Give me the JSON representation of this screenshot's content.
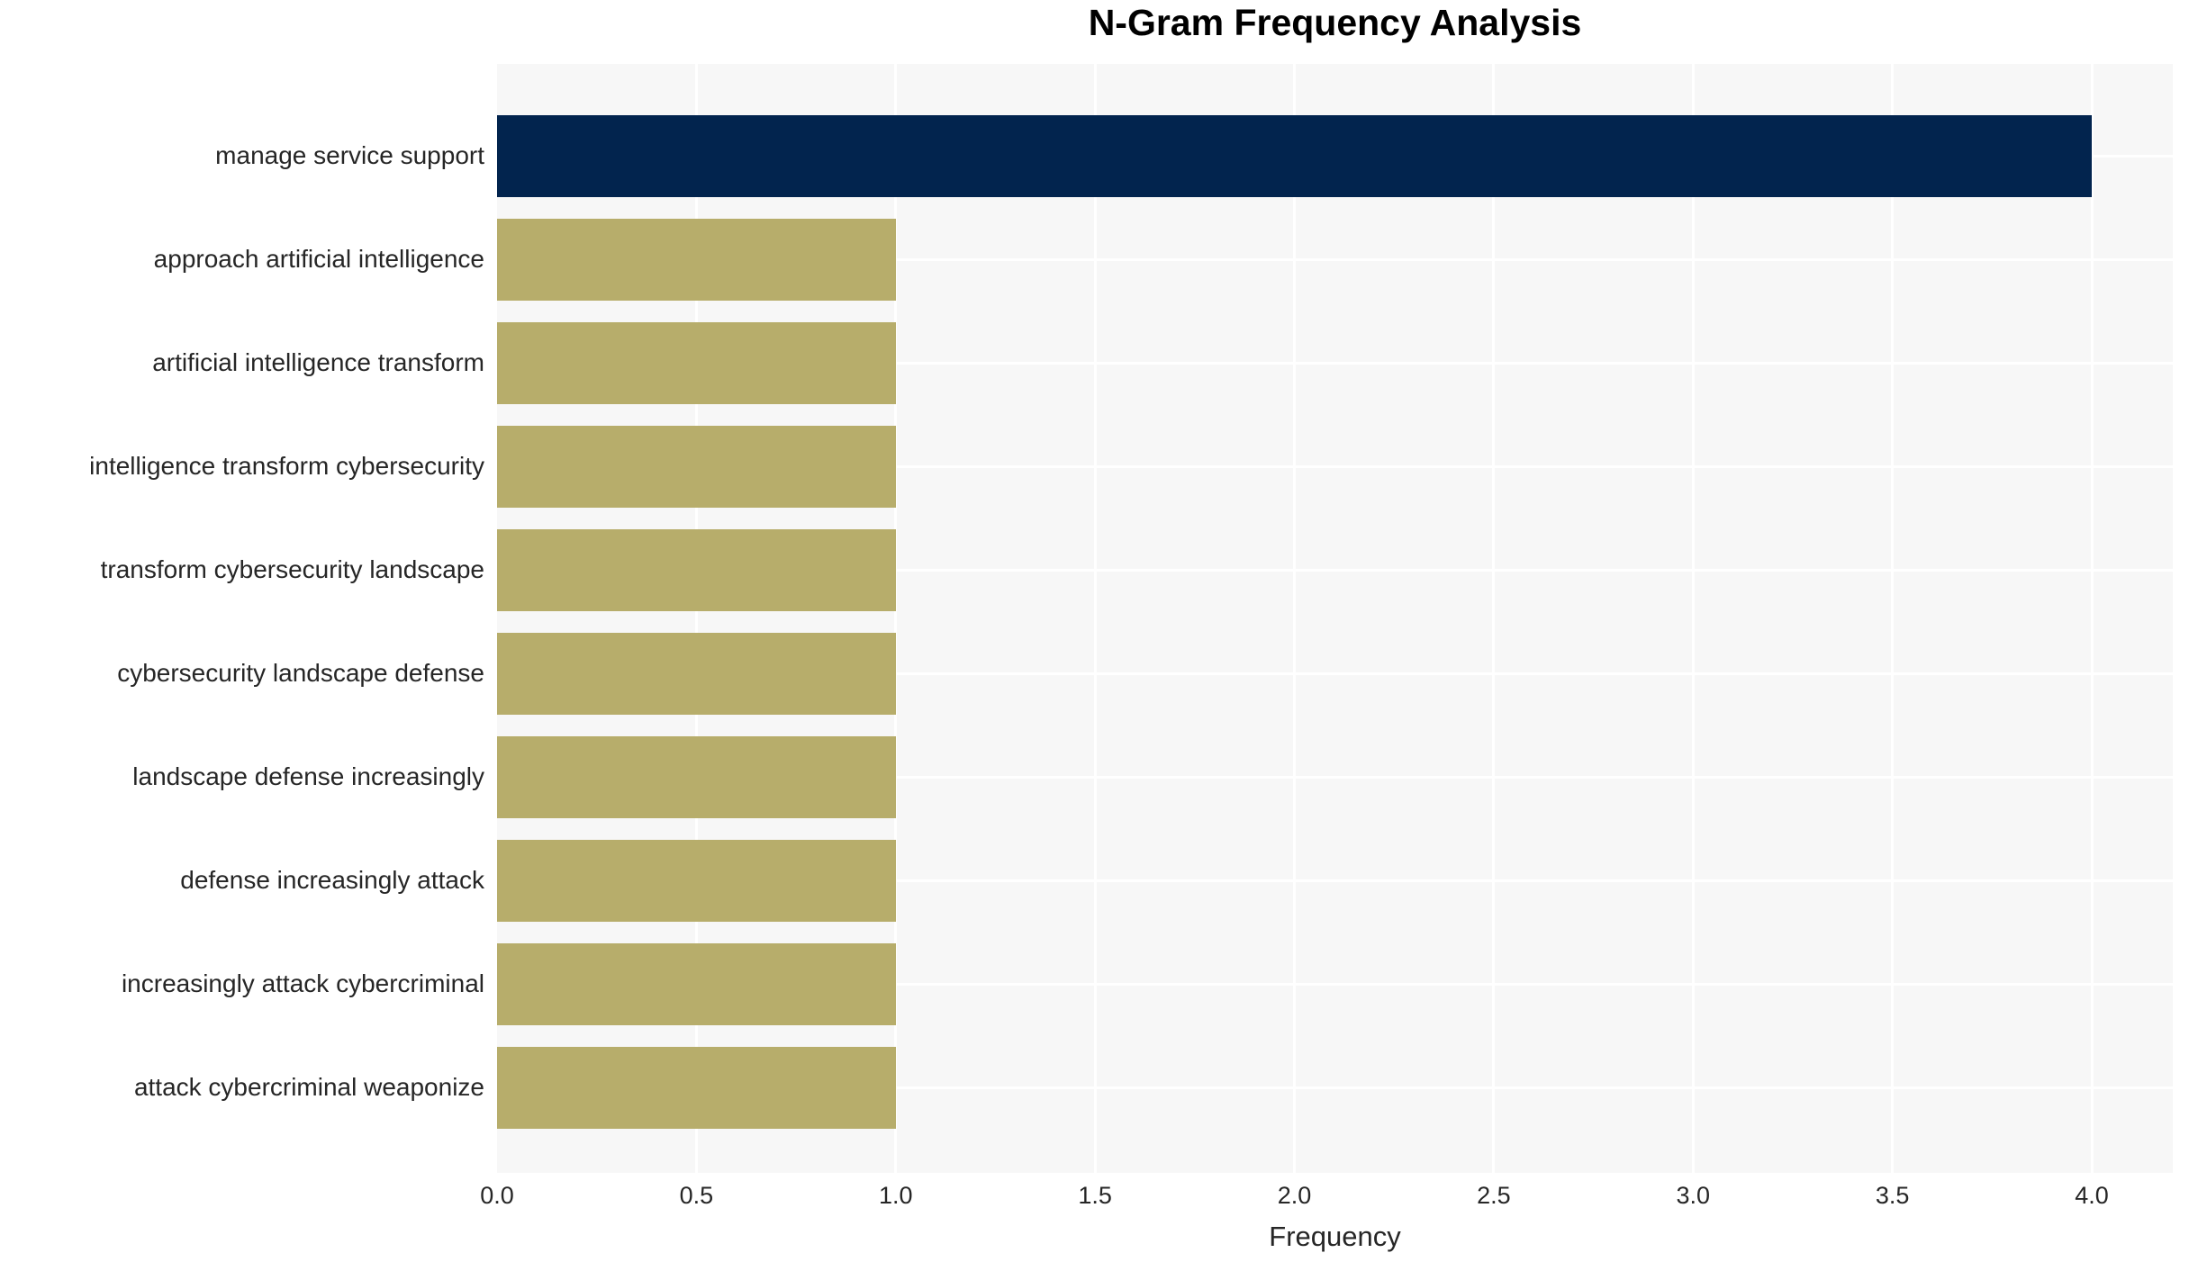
{
  "chart_data": {
    "type": "bar",
    "orientation": "horizontal",
    "title": "N-Gram Frequency Analysis",
    "xlabel": "Frequency",
    "ylabel": "",
    "categories": [
      "manage service support",
      "approach artificial intelligence",
      "artificial intelligence transform",
      "intelligence transform cybersecurity",
      "transform cybersecurity landscape",
      "cybersecurity landscape defense",
      "landscape defense increasingly",
      "defense increasingly attack",
      "increasingly attack cybercriminal",
      "attack cybercriminal weaponize"
    ],
    "values": [
      4,
      1,
      1,
      1,
      1,
      1,
      1,
      1,
      1,
      1
    ],
    "highlight_index": 0,
    "x_ticks": [
      "0.0",
      "0.5",
      "1.0",
      "1.5",
      "2.0",
      "2.5",
      "3.0",
      "3.5",
      "4.0"
    ],
    "xlim": [
      0.0,
      4.2
    ],
    "grid": true,
    "legend_position": "none",
    "colors": {
      "bar_highlight": "#02244e",
      "bar_default": "#b7ad6b",
      "plot_background": "#f7f7f7",
      "gridline": "#ffffff",
      "figure_background": "#ffffff",
      "title_text": "#000000",
      "axis_text": "#262626"
    }
  }
}
